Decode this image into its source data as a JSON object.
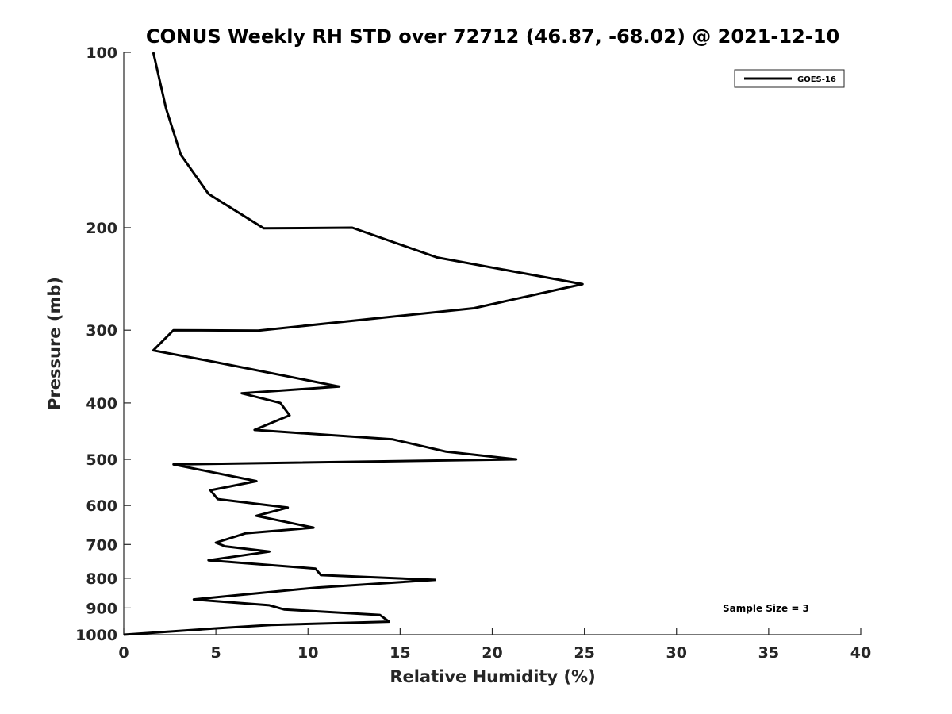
{
  "chart_data": {
    "type": "line",
    "title": "CONUS Weekly RH STD over 72712 (46.87, -68.02) @ 2021-12-10",
    "xlabel": "Relative Humidity (%)",
    "ylabel": "Pressure (mb)",
    "xlim": [
      0,
      40
    ],
    "ylim": [
      100,
      1000
    ],
    "yscale": "log",
    "y_reversed": true,
    "xticks": [
      0,
      5,
      10,
      15,
      20,
      25,
      30,
      35,
      40
    ],
    "yticks": [
      100,
      200,
      300,
      400,
      500,
      600,
      700,
      800,
      900,
      1000
    ],
    "grid": false,
    "legend_position": "top-right",
    "annotation": "Sample Size = 3",
    "series": [
      {
        "name": "GOES-16",
        "color": "#000000",
        "points": [
          [
            1.6,
            100
          ],
          [
            2.3,
            125
          ],
          [
            3.1,
            150
          ],
          [
            4.6,
            175
          ],
          [
            7.6,
            200.5
          ],
          [
            12.4,
            200
          ],
          [
            17.0,
            225
          ],
          [
            24.9,
            250
          ],
          [
            19.0,
            275
          ],
          [
            7.3,
            300.5
          ],
          [
            2.7,
            300
          ],
          [
            1.6,
            325
          ],
          [
            4.9,
            340
          ],
          [
            11.7,
            375
          ],
          [
            6.4,
            385
          ],
          [
            8.5,
            400
          ],
          [
            9.0,
            420
          ],
          [
            7.1,
            445
          ],
          [
            14.6,
            462
          ],
          [
            17.5,
            485
          ],
          [
            21.3,
            500
          ],
          [
            2.7,
            510
          ],
          [
            7.2,
            545
          ],
          [
            4.7,
            565
          ],
          [
            5.1,
            585
          ],
          [
            8.9,
            605
          ],
          [
            7.2,
            625
          ],
          [
            10.3,
            655
          ],
          [
            6.6,
            670
          ],
          [
            5.0,
            695
          ],
          [
            5.5,
            705
          ],
          [
            7.9,
            720
          ],
          [
            4.6,
            745
          ],
          [
            10.4,
            770
          ],
          [
            10.7,
            790
          ],
          [
            16.9,
            805
          ],
          [
            10.5,
            830
          ],
          [
            6.2,
            855
          ],
          [
            3.8,
            870
          ],
          [
            7.9,
            890
          ],
          [
            8.7,
            905
          ],
          [
            13.9,
            925
          ],
          [
            14.4,
            950
          ],
          [
            8.0,
            962
          ],
          [
            5.1,
            975
          ],
          [
            0.0,
            1000
          ]
        ]
      }
    ]
  }
}
